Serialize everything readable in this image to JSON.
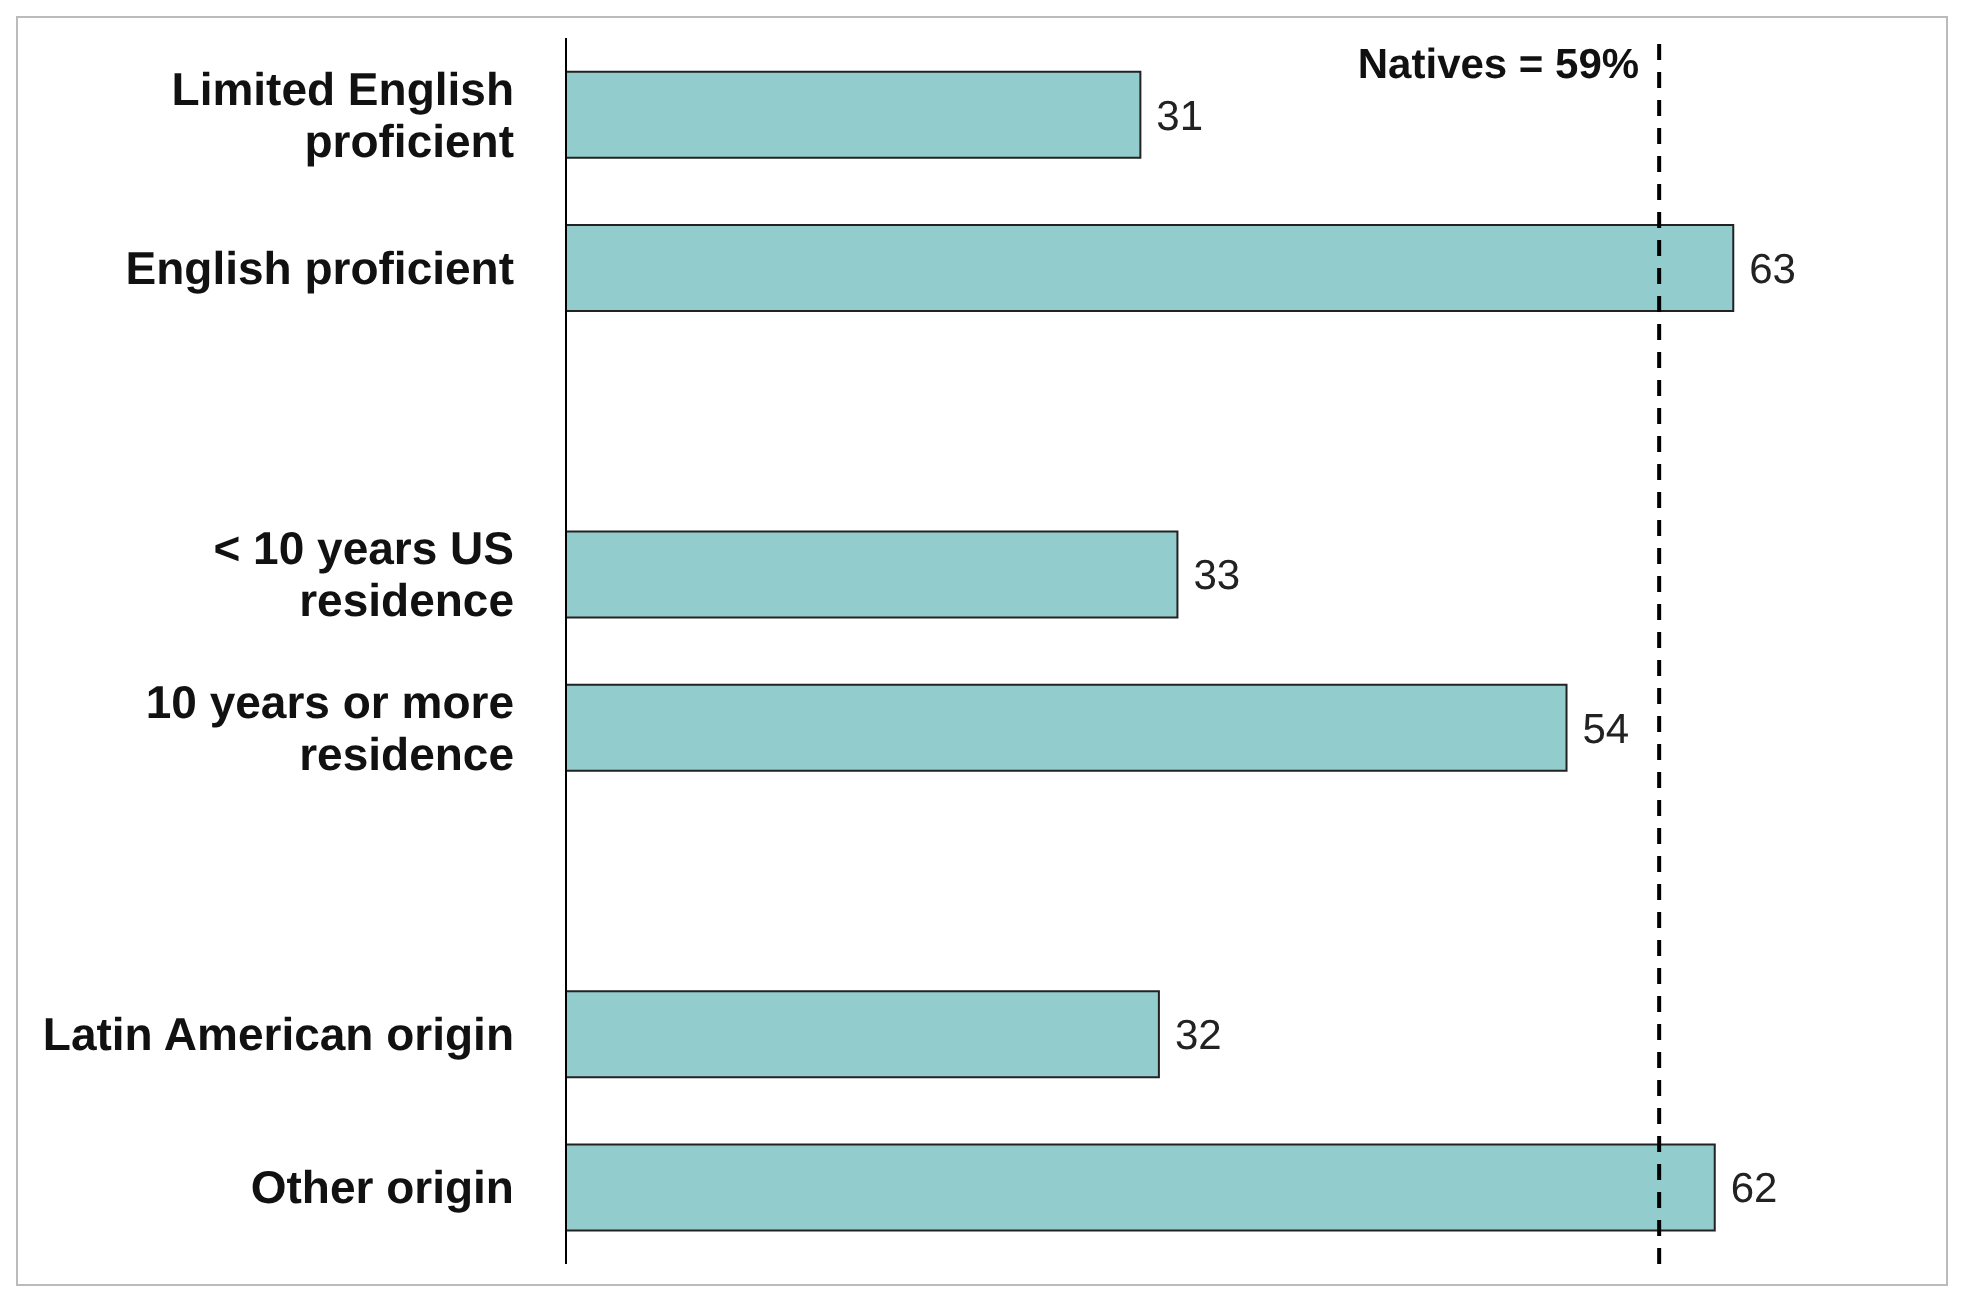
{
  "chart_data": {
    "type": "bar",
    "orientation": "horizontal",
    "categories": [
      "Limited English proficient",
      "English proficient",
      null,
      "< 10 years US residence",
      "10 years or more residence",
      null,
      "Latin American origin",
      "Other origin"
    ],
    "values": [
      31,
      63,
      null,
      33,
      54,
      null,
      32,
      62
    ],
    "color": "#93cccc",
    "data_labels": true,
    "grid": false,
    "legend": false,
    "ref_lines": [
      {
        "axis": "x",
        "value": 59,
        "label": "Natives = 59%",
        "line_style": "dashed",
        "color": "#000000"
      }
    ]
  }
}
